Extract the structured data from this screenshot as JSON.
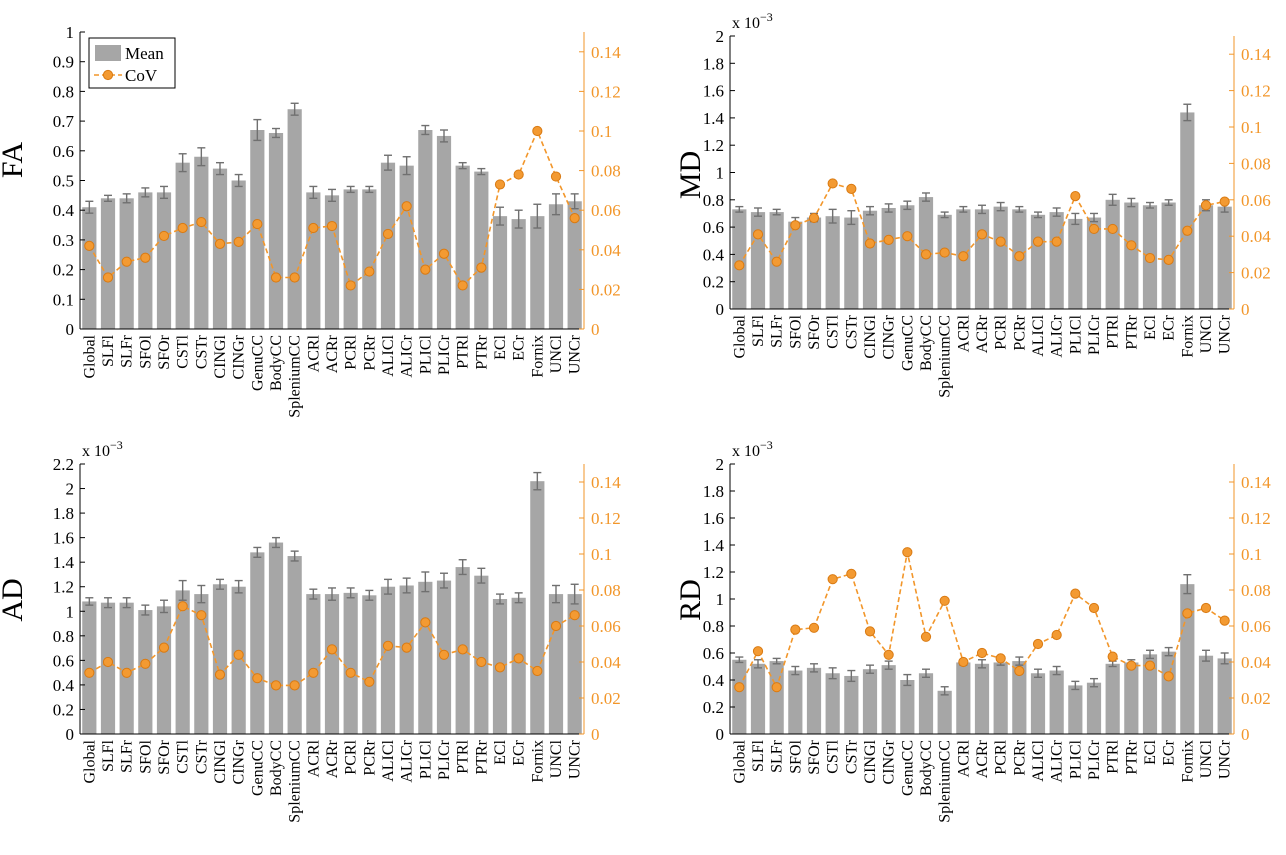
{
  "colors": {
    "bar": "#a6a6a6",
    "error": "#707070",
    "cov_line": "#f2962a",
    "cov_fill": "#f39a32",
    "cov_edge": "#d97a12",
    "axis": "#000000"
  },
  "legend": {
    "mean_label": "Mean",
    "cov_label": "CoV"
  },
  "chart_data": [
    {
      "type": "bar",
      "ylabel": "FA",
      "exponent_label": "",
      "ylim": [
        0,
        1
      ],
      "yticks": [
        "0",
        "0.1",
        "0.2",
        "0.3",
        "0.4",
        "0.5",
        "0.6",
        "0.7",
        "0.8",
        "0.9",
        "1"
      ],
      "y2lim": [
        0,
        0.15
      ],
      "y2ticks": [
        "0",
        "0.02",
        "0.04",
        "0.06",
        "0.08",
        "0.1",
        "0.12",
        "0.14"
      ],
      "legend": true,
      "categories": [
        "Global",
        "SLFl",
        "SLFr",
        "SFOl",
        "SFOr",
        "CSTl",
        "CSTr",
        "CINGl",
        "CINGr",
        "GenuCC",
        "BodyCC",
        "SpleniumCC",
        "ACRl",
        "ACRr",
        "PCRl",
        "PCRr",
        "ALICl",
        "ALICr",
        "PLICl",
        "PLICr",
        "PTRl",
        "PTRr",
        "ECl",
        "ECr",
        "Fornix",
        "UNCl",
        "UNCr"
      ],
      "series": [
        {
          "name": "Mean",
          "values": [
            0.41,
            0.44,
            0.44,
            0.46,
            0.46,
            0.56,
            0.58,
            0.54,
            0.5,
            0.67,
            0.66,
            0.74,
            0.46,
            0.45,
            0.47,
            0.47,
            0.56,
            0.55,
            0.67,
            0.65,
            0.55,
            0.53,
            0.38,
            0.37,
            0.38,
            0.42,
            0.43
          ],
          "errors": [
            0.02,
            0.01,
            0.015,
            0.015,
            0.02,
            0.03,
            0.03,
            0.02,
            0.02,
            0.035,
            0.015,
            0.02,
            0.02,
            0.02,
            0.01,
            0.01,
            0.025,
            0.03,
            0.015,
            0.02,
            0.01,
            0.01,
            0.03,
            0.03,
            0.04,
            0.035,
            0.025
          ]
        },
        {
          "name": "CoV",
          "values": [
            0.042,
            0.026,
            0.034,
            0.036,
            0.047,
            0.051,
            0.054,
            0.043,
            0.044,
            0.053,
            0.026,
            0.026,
            0.051,
            0.052,
            0.022,
            0.029,
            0.048,
            0.062,
            0.03,
            0.038,
            0.022,
            0.031,
            0.073,
            0.078,
            0.1,
            0.077,
            0.056
          ]
        }
      ]
    },
    {
      "type": "bar",
      "ylabel": "MD",
      "exponent_label": "x 10",
      "exponent_power": "−3",
      "ylim": [
        0,
        2
      ],
      "yticks": [
        "0",
        "0.2",
        "0.4",
        "0.6",
        "0.8",
        "1",
        "1.2",
        "1.4",
        "1.6",
        "1.8",
        "2"
      ],
      "y2lim": [
        0,
        0.15
      ],
      "y2ticks": [
        "0",
        "0.02",
        "0.04",
        "0.06",
        "0.08",
        "0.1",
        "0.12",
        "0.14"
      ],
      "legend": false,
      "categories": [
        "Global",
        "SLFl",
        "SLFr",
        "SFOl",
        "SFOr",
        "CSTl",
        "CSTr",
        "CINGl",
        "CINGr",
        "GenuCC",
        "BodyCC",
        "SpleniumCC",
        "ACRl",
        "ACRr",
        "PCRl",
        "PCRr",
        "ALICl",
        "ALICr",
        "PLICl",
        "PLICr",
        "PTRl",
        "PTRr",
        "ECl",
        "ECr",
        "Fornix",
        "UNCl",
        "UNCr"
      ],
      "series": [
        {
          "name": "Mean",
          "values": [
            0.73,
            0.71,
            0.71,
            0.64,
            0.67,
            0.68,
            0.67,
            0.72,
            0.74,
            0.76,
            0.82,
            0.69,
            0.73,
            0.73,
            0.75,
            0.73,
            0.69,
            0.71,
            0.66,
            0.67,
            0.8,
            0.78,
            0.76,
            0.78,
            1.44,
            0.76,
            0.75
          ],
          "errors": [
            0.02,
            0.03,
            0.02,
            0.03,
            0.03,
            0.05,
            0.05,
            0.03,
            0.03,
            0.03,
            0.03,
            0.02,
            0.02,
            0.03,
            0.03,
            0.02,
            0.02,
            0.03,
            0.04,
            0.03,
            0.04,
            0.03,
            0.02,
            0.02,
            0.06,
            0.04,
            0.04
          ]
        },
        {
          "name": "CoV",
          "values": [
            0.024,
            0.041,
            0.026,
            0.046,
            0.05,
            0.069,
            0.066,
            0.036,
            0.038,
            0.04,
            0.03,
            0.031,
            0.029,
            0.041,
            0.037,
            0.029,
            0.037,
            0.037,
            0.062,
            0.044,
            0.044,
            0.035,
            0.028,
            0.027,
            0.043,
            0.057,
            0.059
          ]
        }
      ]
    },
    {
      "type": "bar",
      "ylabel": "AD",
      "exponent_label": "x 10",
      "exponent_power": "−3",
      "ylim": [
        0,
        2.2
      ],
      "yticks": [
        "0",
        "0.2",
        "0.4",
        "0.6",
        "0.8",
        "1",
        "1.2",
        "1.4",
        "1.6",
        "1.8",
        "2",
        "2.2"
      ],
      "y2lim": [
        0,
        0.15
      ],
      "y2ticks": [
        "0",
        "0.02",
        "0.04",
        "0.06",
        "0.08",
        "0.1",
        "0.12",
        "0.14"
      ],
      "legend": false,
      "categories": [
        "Global",
        "SLFl",
        "SLFr",
        "SFOl",
        "SFOr",
        "CSTl",
        "CSTr",
        "CINGl",
        "CINGr",
        "GenuCC",
        "BodyCC",
        "SpleniumCC",
        "ACRl",
        "ACRr",
        "PCRl",
        "PCRr",
        "ALICl",
        "ALICr",
        "PLICl",
        "PLICr",
        "PTRl",
        "PTRr",
        "ECl",
        "ECr",
        "Fornix",
        "UNCl",
        "UNCr"
      ],
      "series": [
        {
          "name": "Mean",
          "values": [
            1.08,
            1.07,
            1.07,
            1.01,
            1.04,
            1.17,
            1.14,
            1.22,
            1.2,
            1.48,
            1.56,
            1.45,
            1.14,
            1.14,
            1.15,
            1.13,
            1.2,
            1.21,
            1.24,
            1.25,
            1.36,
            1.29,
            1.1,
            1.11,
            2.06,
            1.14,
            1.14
          ],
          "errors": [
            0.03,
            0.04,
            0.04,
            0.04,
            0.05,
            0.08,
            0.07,
            0.04,
            0.05,
            0.04,
            0.04,
            0.04,
            0.04,
            0.05,
            0.04,
            0.04,
            0.06,
            0.06,
            0.08,
            0.06,
            0.06,
            0.06,
            0.04,
            0.04,
            0.07,
            0.07,
            0.08
          ]
        },
        {
          "name": "CoV",
          "values": [
            0.034,
            0.04,
            0.034,
            0.039,
            0.048,
            0.071,
            0.066,
            0.033,
            0.044,
            0.031,
            0.027,
            0.027,
            0.034,
            0.047,
            0.034,
            0.029,
            0.049,
            0.048,
            0.062,
            0.044,
            0.047,
            0.04,
            0.037,
            0.042,
            0.035,
            0.06,
            0.066
          ]
        }
      ]
    },
    {
      "type": "bar",
      "ylabel": "RD",
      "exponent_label": "x 10",
      "exponent_power": "−3",
      "ylim": [
        0,
        2
      ],
      "yticks": [
        "0",
        "0.2",
        "0.4",
        "0.6",
        "0.8",
        "1",
        "1.2",
        "1.4",
        "1.6",
        "1.8",
        "2"
      ],
      "y2lim": [
        0,
        0.15
      ],
      "y2ticks": [
        "0",
        "0.02",
        "0.04",
        "0.06",
        "0.08",
        "0.1",
        "0.12",
        "0.14"
      ],
      "legend": false,
      "categories": [
        "Global",
        "SLFl",
        "SLFr",
        "SFOl",
        "SFOr",
        "CSTl",
        "CSTr",
        "CINGl",
        "CINGr",
        "GenuCC",
        "BodyCC",
        "SpleniumCC",
        "ACRl",
        "ACRr",
        "PCRl",
        "PCRr",
        "ALICl",
        "ALICr",
        "PLICl",
        "PLICr",
        "PTRl",
        "PTRr",
        "ECl",
        "ECr",
        "Fornix",
        "UNCl",
        "UNCr"
      ],
      "series": [
        {
          "name": "Mean",
          "values": [
            0.55,
            0.52,
            0.54,
            0.47,
            0.49,
            0.45,
            0.43,
            0.48,
            0.51,
            0.4,
            0.45,
            0.32,
            0.53,
            0.52,
            0.53,
            0.54,
            0.45,
            0.47,
            0.36,
            0.38,
            0.52,
            0.53,
            0.59,
            0.61,
            1.11,
            0.58,
            0.56
          ],
          "errors": [
            0.02,
            0.03,
            0.02,
            0.03,
            0.03,
            0.04,
            0.04,
            0.03,
            0.03,
            0.04,
            0.03,
            0.03,
            0.02,
            0.03,
            0.02,
            0.03,
            0.03,
            0.03,
            0.03,
            0.03,
            0.02,
            0.02,
            0.03,
            0.03,
            0.07,
            0.04,
            0.04
          ]
        },
        {
          "name": "CoV",
          "values": [
            0.026,
            0.046,
            0.026,
            0.058,
            0.059,
            0.086,
            0.089,
            0.057,
            0.044,
            0.101,
            0.054,
            0.074,
            0.04,
            0.045,
            0.042,
            0.035,
            0.05,
            0.055,
            0.078,
            0.07,
            0.043,
            0.038,
            0.038,
            0.032,
            0.067,
            0.07,
            0.063
          ]
        }
      ]
    }
  ]
}
